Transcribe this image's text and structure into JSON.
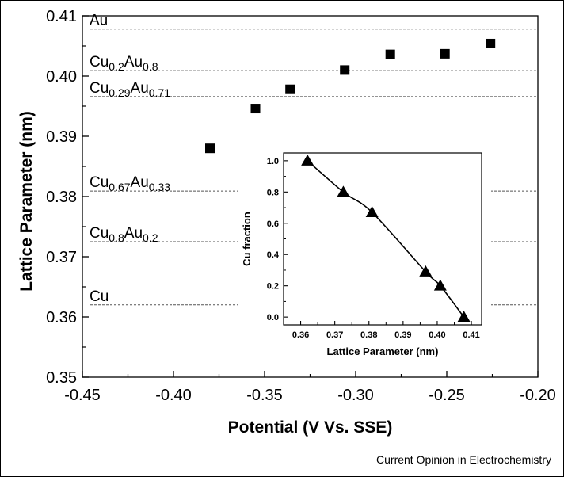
{
  "source": "Current Opinion in Electrochemistry",
  "chart_data": [
    {
      "type": "scatter",
      "xlabel": "Potential (V Vs. SSE)",
      "ylabel": "Lattice Parameter (nm)",
      "xlim": [
        -0.45,
        -0.2
      ],
      "ylim": [
        0.35,
        0.41
      ],
      "xticks": [
        -0.45,
        -0.4,
        -0.35,
        -0.3,
        -0.25,
        -0.2
      ],
      "xtick_labels": [
        "-0.45",
        "-0.40",
        "-0.35",
        "-0.30",
        "-0.25",
        "-0.20"
      ],
      "yticks": [
        0.35,
        0.36,
        0.37,
        0.38,
        0.39,
        0.4,
        0.41
      ],
      "ytick_labels": [
        "0.35",
        "0.36",
        "0.37",
        "0.38",
        "0.39",
        "0.40",
        "0.41"
      ],
      "marker": "square",
      "x": [
        -0.38,
        -0.355,
        -0.336,
        -0.306,
        -0.281,
        -0.251,
        -0.226
      ],
      "y": [
        0.388,
        0.3946,
        0.3978,
        0.401,
        0.4036,
        0.4037,
        0.4054
      ],
      "reference_lines": [
        {
          "label": "Au",
          "parts": [
            {
              "t": "Au"
            }
          ],
          "y": 0.4078,
          "span": "full"
        },
        {
          "label": "Cu0.2Au0.8",
          "parts": [
            {
              "t": "Cu"
            },
            {
              "t": "0.2",
              "sub": true
            },
            {
              "t": "Au"
            },
            {
              "t": "0.8",
              "sub": true
            }
          ],
          "y": 0.4009,
          "span": "full"
        },
        {
          "label": "Cu0.29Au0.71",
          "parts": [
            {
              "t": "Cu"
            },
            {
              "t": "0.29",
              "sub": true
            },
            {
              "t": "Au"
            },
            {
              "t": "0.71",
              "sub": true
            }
          ],
          "y": 0.3966,
          "span": "full"
        },
        {
          "label": "Cu0.67Au0.33",
          "parts": [
            {
              "t": "Cu"
            },
            {
              "t": "0.67",
              "sub": true
            },
            {
              "t": "Au"
            },
            {
              "t": "0.33",
              "sub": true
            }
          ],
          "y": 0.3809,
          "span": "full"
        },
        {
          "label": "Cu0.8Au0.2",
          "parts": [
            {
              "t": "Cu"
            },
            {
              "t": "0.8",
              "sub": true
            },
            {
              "t": "Au"
            },
            {
              "t": "0.2",
              "sub": true
            }
          ],
          "y": 0.3725,
          "span": "full"
        },
        {
          "label": "Cu",
          "parts": [
            {
              "t": "Cu"
            }
          ],
          "y": 0.362,
          "span": "full"
        }
      ]
    },
    {
      "type": "line",
      "xlabel": "Lattice Parameter (nm)",
      "ylabel": "Cu fraction",
      "xlim": [
        0.355,
        0.413
      ],
      "ylim": [
        -0.05,
        1.05
      ],
      "xticks": [
        0.36,
        0.37,
        0.38,
        0.39,
        0.4,
        0.41
      ],
      "xtick_labels": [
        "0.36",
        "0.37",
        "0.38",
        "0.39",
        "0.40",
        "0.41"
      ],
      "yticks": [
        0.0,
        0.2,
        0.4,
        0.6,
        0.8,
        1.0
      ],
      "ytick_labels": [
        "0.0",
        "0.2",
        "0.4",
        "0.6",
        "0.8",
        "1.0"
      ],
      "marker": "triangle",
      "x": [
        0.362,
        0.3725,
        0.3809,
        0.3966,
        0.4009,
        0.4078
      ],
      "y": [
        1.0,
        0.8,
        0.67,
        0.29,
        0.2,
        0.0
      ]
    }
  ]
}
